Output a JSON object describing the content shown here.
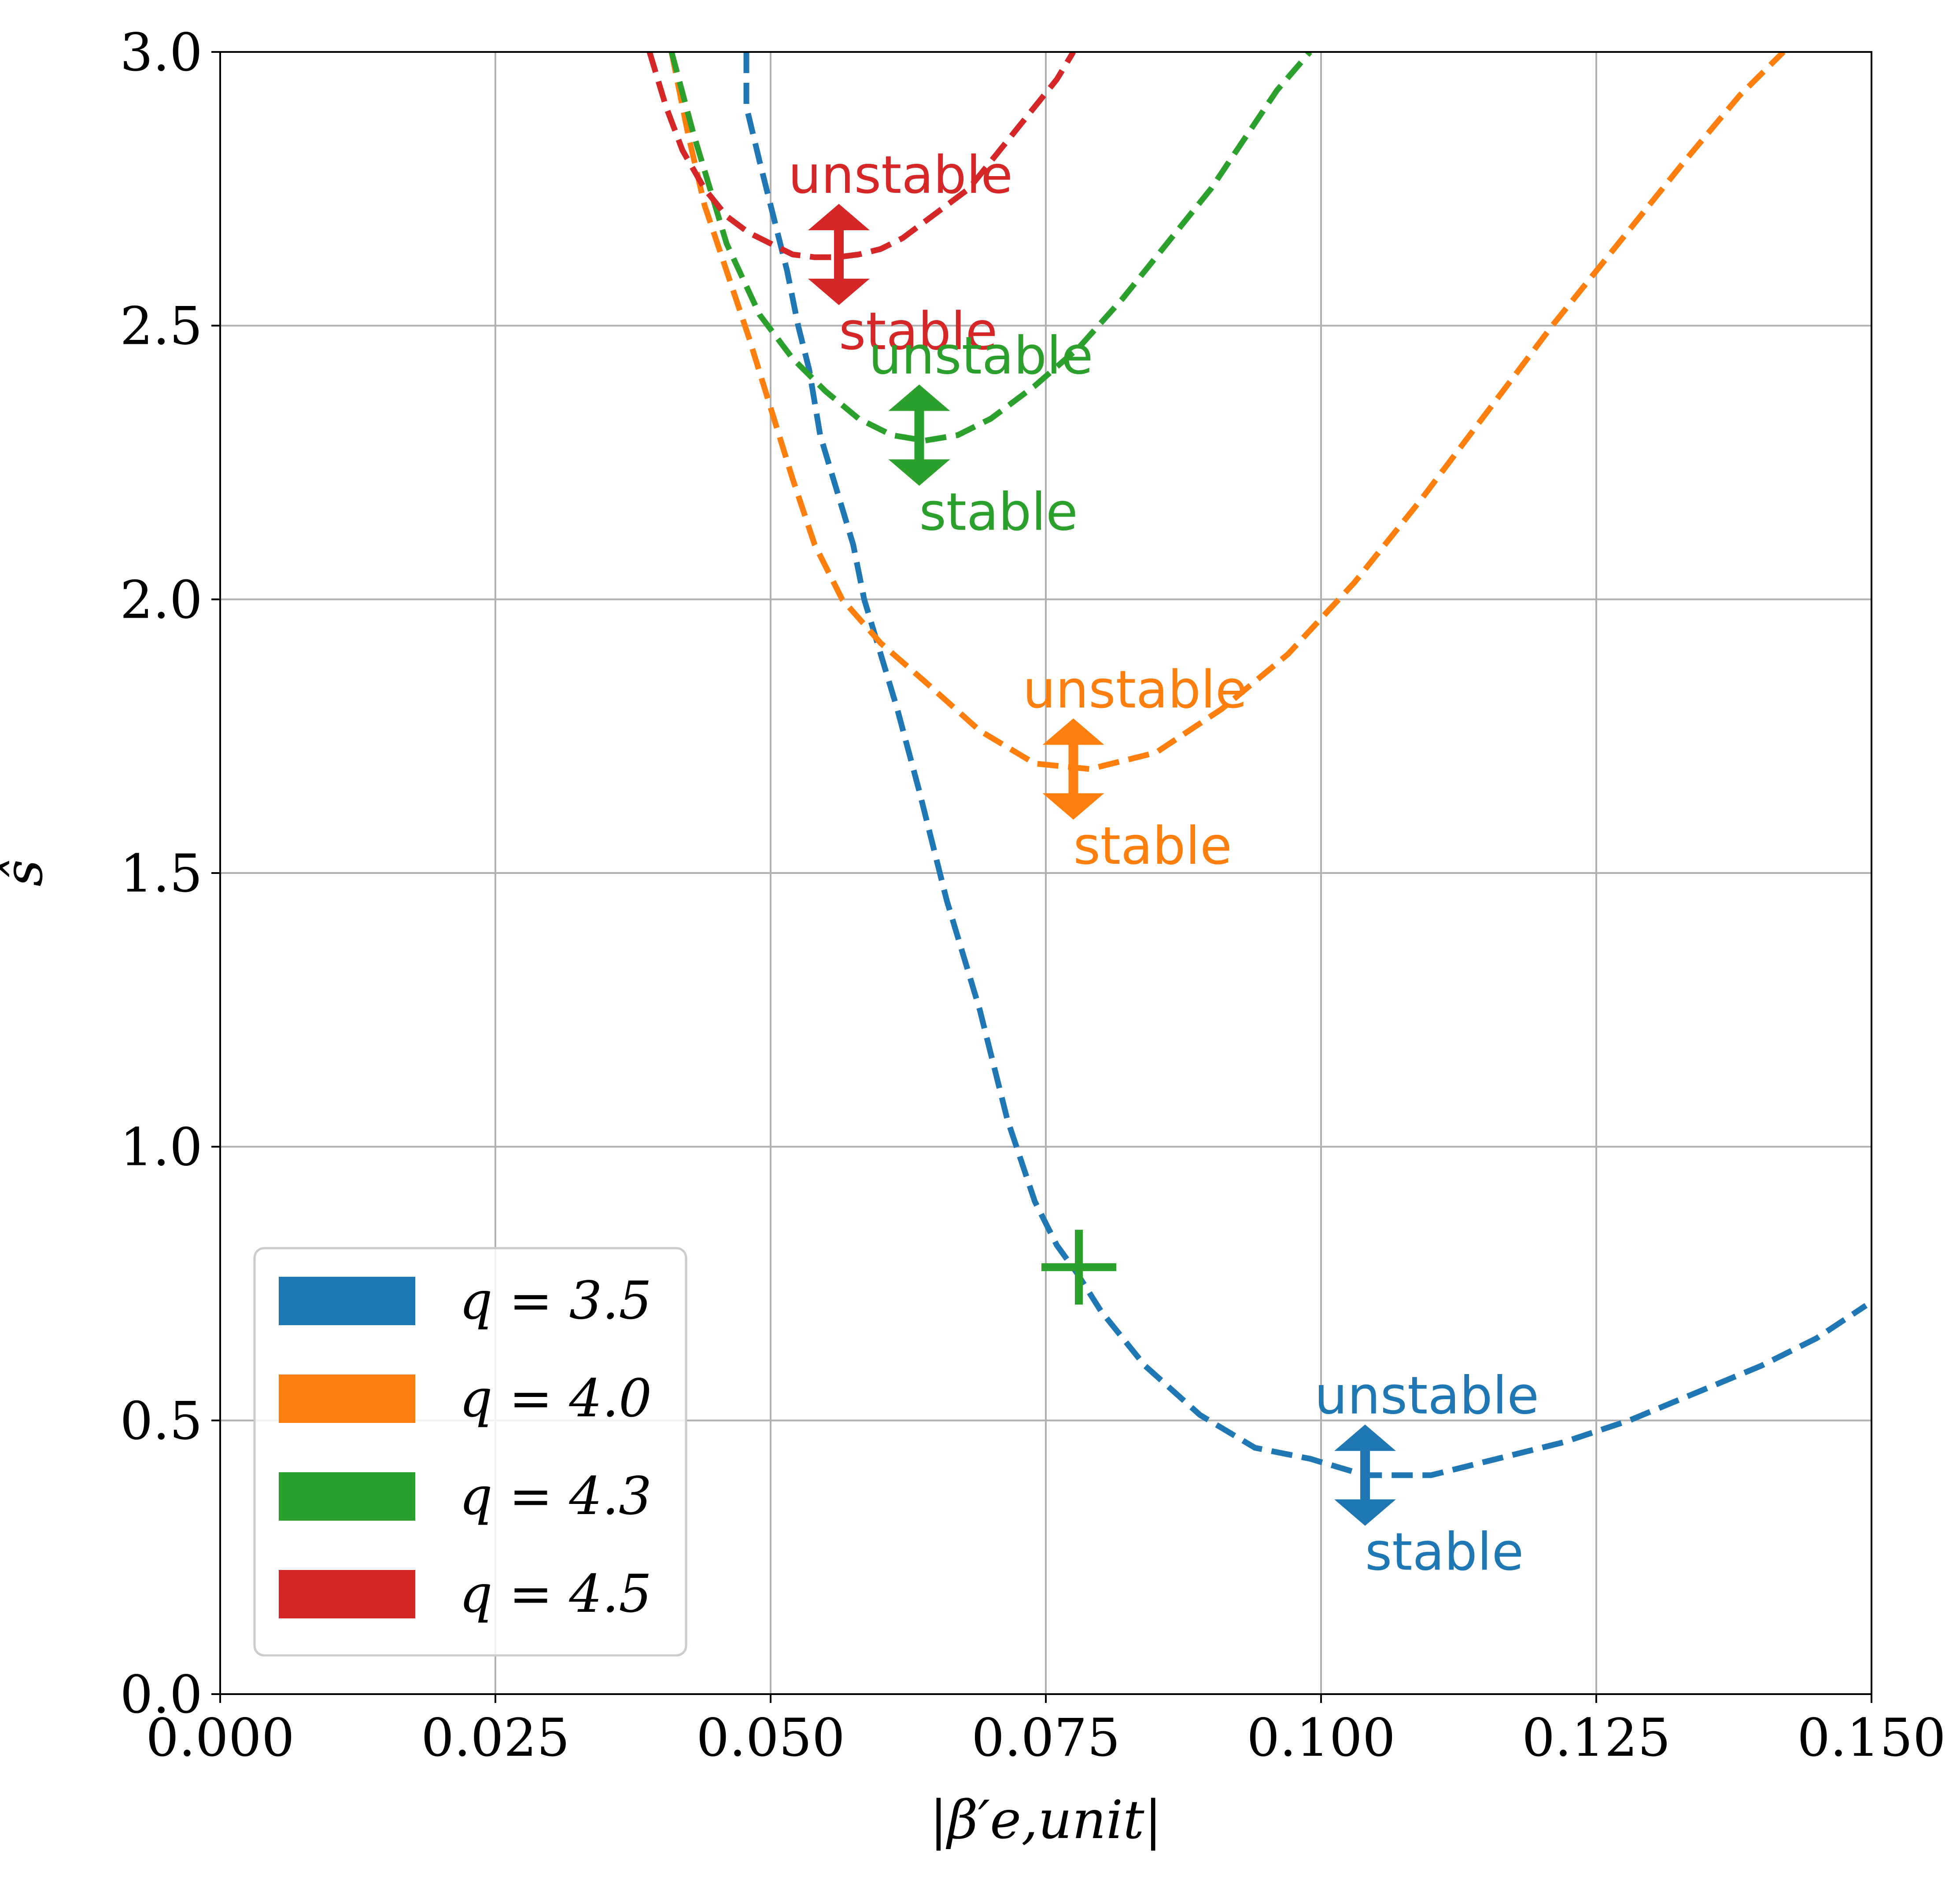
{
  "chart_data": {
    "type": "line",
    "title": "",
    "xlabel": "|β′e,unit|",
    "ylabel": "ŝ",
    "xlim": [
      0.0,
      0.15
    ],
    "ylim": [
      0.0,
      3.0
    ],
    "grid": true,
    "x_ticks": [
      "0.000",
      "0.025",
      "0.050",
      "0.075",
      "0.100",
      "0.125",
      "0.150"
    ],
    "y_ticks": [
      "0.0",
      "0.5",
      "1.0",
      "1.5",
      "2.0",
      "2.5",
      "3.0"
    ],
    "legend_position": "lower-left",
    "series": [
      {
        "name": "q = 3.5",
        "color": "#1f77b4",
        "x": [
          0.0478,
          0.0478,
          0.049,
          0.0515,
          0.0525,
          0.0535,
          0.0545,
          0.056,
          0.0575,
          0.0585,
          0.06,
          0.0615,
          0.0635,
          0.066,
          0.069,
          0.0715,
          0.074,
          0.076,
          0.0778,
          0.08,
          0.084,
          0.089,
          0.094,
          0.099,
          0.104,
          0.11,
          0.116,
          0.122,
          0.128,
          0.134,
          0.14,
          0.145,
          0.1495
        ],
        "y": [
          3.0,
          2.9,
          2.8,
          2.6,
          2.5,
          2.42,
          2.3,
          2.2,
          2.1,
          2.0,
          1.9,
          1.8,
          1.65,
          1.45,
          1.25,
          1.05,
          0.9,
          0.82,
          0.77,
          0.7,
          0.6,
          0.51,
          0.45,
          0.43,
          0.4,
          0.4,
          0.43,
          0.46,
          0.5,
          0.55,
          0.6,
          0.65,
          0.71
        ]
      },
      {
        "name": "q = 4.0",
        "color": "#ff7f0e",
        "x": [
          0.041,
          0.0425,
          0.044,
          0.046,
          0.048,
          0.05,
          0.052,
          0.054,
          0.0565,
          0.06,
          0.064,
          0.069,
          0.074,
          0.079,
          0.085,
          0.091,
          0.097,
          0.103,
          0.109,
          0.115,
          0.121,
          0.127,
          0.133,
          0.138,
          0.142
        ],
        "y": [
          3.0,
          2.85,
          2.72,
          2.6,
          2.48,
          2.35,
          2.22,
          2.1,
          2.0,
          1.92,
          1.85,
          1.76,
          1.7,
          1.69,
          1.72,
          1.8,
          1.9,
          2.03,
          2.18,
          2.34,
          2.5,
          2.65,
          2.8,
          2.92,
          3.0
        ]
      },
      {
        "name": "q = 4.3",
        "color": "#2ca02c",
        "x": [
          0.041,
          0.043,
          0.046,
          0.049,
          0.052,
          0.055,
          0.058,
          0.061,
          0.064,
          0.067,
          0.07,
          0.074,
          0.078,
          0.082,
          0.086,
          0.09,
          0.093,
          0.096,
          0.099
        ],
        "y": [
          3.0,
          2.85,
          2.65,
          2.52,
          2.44,
          2.38,
          2.33,
          2.3,
          2.29,
          2.3,
          2.33,
          2.39,
          2.46,
          2.55,
          2.65,
          2.75,
          2.84,
          2.93,
          3.0
        ]
      },
      {
        "name": "q = 4.5",
        "color": "#d62728",
        "x": [
          0.039,
          0.0405,
          0.042,
          0.044,
          0.046,
          0.048,
          0.05,
          0.052,
          0.054,
          0.056,
          0.058,
          0.06,
          0.062,
          0.064,
          0.066,
          0.068,
          0.07,
          0.072,
          0.074,
          0.076,
          0.0775
        ],
        "y": [
          3.0,
          2.9,
          2.82,
          2.75,
          2.7,
          2.67,
          2.65,
          2.63,
          2.625,
          2.625,
          2.63,
          2.64,
          2.66,
          2.69,
          2.72,
          2.75,
          2.8,
          2.85,
          2.9,
          2.95,
          3.0
        ]
      }
    ],
    "annotations": [
      {
        "series": "q = 4.5",
        "x": 0.0562,
        "y": 2.63,
        "color": "#d62728",
        "upper": "unstable",
        "lower": "stable"
      },
      {
        "series": "q = 4.3",
        "x": 0.0635,
        "y": 2.3,
        "color": "#2ca02c",
        "upper": "unstable",
        "lower": "stable"
      },
      {
        "series": "q = 4.0",
        "x": 0.0775,
        "y": 1.69,
        "color": "#ff7f0e",
        "upper": "unstable",
        "lower": "stable"
      },
      {
        "series": "q = 3.5",
        "x": 0.104,
        "y": 0.4,
        "color": "#1f77b4",
        "upper": "unstable",
        "lower": "stable"
      }
    ],
    "marker": {
      "x": 0.078,
      "y": 0.78,
      "symbol": "+",
      "color": "#2ca02c"
    }
  }
}
